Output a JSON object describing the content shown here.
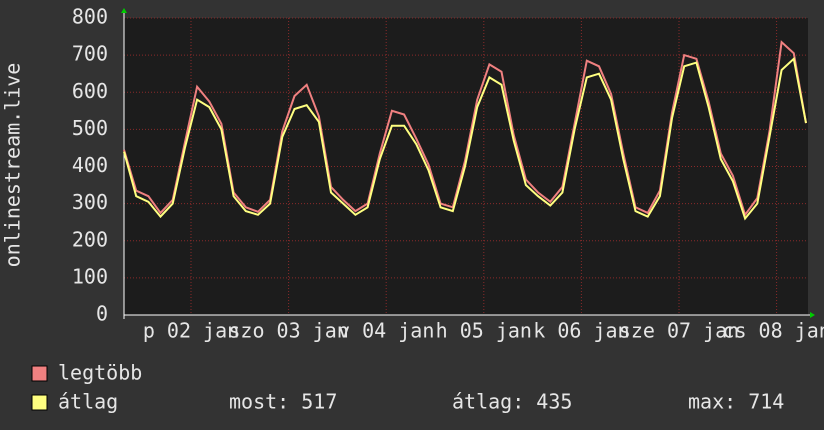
{
  "chart_data": {
    "type": "line",
    "y_label": "onlinestream.live",
    "ylim": [
      0,
      800
    ],
    "yticks": [
      0,
      100,
      200,
      300,
      400,
      500,
      600,
      700,
      800
    ],
    "grid": true,
    "xtick_labels": [
      "p 02 jan",
      "szo 03 jan",
      "v 04 jan",
      "h 05 jan",
      "k 06 jan",
      "sze 07 jan",
      "cs 08 jan"
    ],
    "series": [
      {
        "name": "legtöbb",
        "color": "#f08080",
        "values": [
          445,
          335,
          320,
          275,
          310,
          465,
          615,
          575,
          515,
          330,
          290,
          278,
          310,
          495,
          590,
          620,
          535,
          345,
          310,
          280,
          300,
          435,
          550,
          540,
          475,
          405,
          300,
          290,
          415,
          580,
          675,
          655,
          485,
          365,
          330,
          305,
          345,
          515,
          685,
          670,
          595,
          435,
          290,
          275,
          335,
          545,
          700,
          690,
          575,
          435,
          375,
          270,
          315,
          495,
          735,
          705,
          517
        ]
      },
      {
        "name": "átlag",
        "color": "#ffff80",
        "values": [
          440,
          320,
          305,
          265,
          300,
          450,
          580,
          560,
          500,
          320,
          280,
          270,
          300,
          480,
          555,
          565,
          520,
          330,
          300,
          270,
          290,
          420,
          510,
          510,
          460,
          390,
          290,
          280,
          400,
          560,
          640,
          620,
          470,
          350,
          320,
          295,
          330,
          500,
          640,
          650,
          580,
          420,
          280,
          265,
          320,
          530,
          670,
          680,
          560,
          420,
          360,
          260,
          300,
          480,
          660,
          690,
          517
        ]
      }
    ],
    "stats": [
      "most: 517",
      "átlag: 435",
      "max: 714"
    ]
  }
}
